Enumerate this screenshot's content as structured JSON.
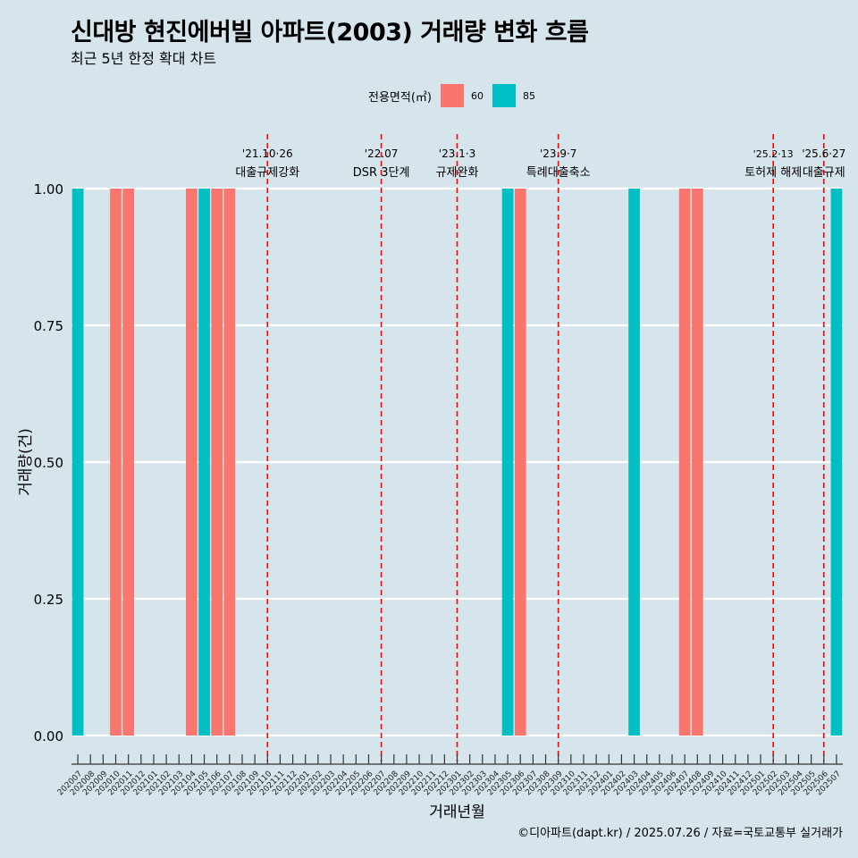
{
  "header": {
    "title": "신대방 현진에버빌 아파트(2003) 거래량 변화 흐름",
    "subtitle": "최근 5년 한정 확대 차트"
  },
  "legend": {
    "title": "전용면적(㎡)",
    "items": [
      {
        "label": "60",
        "color": "#F8766D"
      },
      {
        "label": "85",
        "color": "#00BFC4"
      }
    ]
  },
  "caption": "©디아파트(dapt.kr) / 2025.07.26 / 자료=국토교통부 실거래가",
  "chart_data": {
    "type": "bar",
    "title": "신대방 현진에버빌 아파트(2003) 거래량 변화 흐름",
    "subtitle": "최근 5년 한정 확대 차트",
    "xlabel": "거래년월",
    "ylabel": "거래량(건)",
    "ylim": [
      0,
      1
    ],
    "yticks": [
      "0.00",
      "0.25",
      "0.50",
      "0.75",
      "1.00"
    ],
    "grid": true,
    "legend_position": "top",
    "categories": [
      "202007",
      "202008",
      "202009",
      "202010",
      "202011",
      "202012",
      "202101",
      "202102",
      "202103",
      "202104",
      "202105",
      "202106",
      "202107",
      "202108",
      "202109",
      "202110",
      "202111",
      "202112",
      "202201",
      "202202",
      "202203",
      "202204",
      "202205",
      "202206",
      "202207",
      "202208",
      "202209",
      "202210",
      "202211",
      "202212",
      "202301",
      "202302",
      "202303",
      "202304",
      "202305",
      "202306",
      "202307",
      "202308",
      "202309",
      "202310",
      "202311",
      "202312",
      "202401",
      "202402",
      "202403",
      "202404",
      "202405",
      "202406",
      "202407",
      "202408",
      "202409",
      "202410",
      "202411",
      "202412",
      "202501",
      "202502",
      "202503",
      "202504",
      "202505",
      "202506",
      "202507"
    ],
    "series": [
      {
        "name": "60",
        "color": "#F8766D",
        "points": [
          {
            "x": "202010",
            "y": 1
          },
          {
            "x": "202011",
            "y": 1
          },
          {
            "x": "202104",
            "y": 1
          },
          {
            "x": "202106",
            "y": 1
          },
          {
            "x": "202107",
            "y": 1
          },
          {
            "x": "202306",
            "y": 1
          },
          {
            "x": "202407",
            "y": 1
          },
          {
            "x": "202408",
            "y": 1
          }
        ]
      },
      {
        "name": "85",
        "color": "#00BFC4",
        "points": [
          {
            "x": "202007",
            "y": 1
          },
          {
            "x": "202105",
            "y": 1
          },
          {
            "x": "202305",
            "y": 1
          },
          {
            "x": "202403",
            "y": 1
          },
          {
            "x": "202507",
            "y": 1
          }
        ]
      }
    ],
    "annotations": [
      {
        "x": "202110",
        "date": "'21.10·26",
        "label": "대출규제강화"
      },
      {
        "x": "202207",
        "date": "'22.07",
        "label": "DSR 3단계"
      },
      {
        "x": "202301",
        "date": "'23.1·3",
        "label": "규제완화"
      },
      {
        "x": "202309",
        "date": "'23.9·7",
        "label": "특례대출축소"
      },
      {
        "x": "202502",
        "date": "'25.2·13",
        "label": "토허제 해제"
      },
      {
        "x": "202506",
        "date": "'25.6·27",
        "label": "대출규제"
      }
    ]
  }
}
